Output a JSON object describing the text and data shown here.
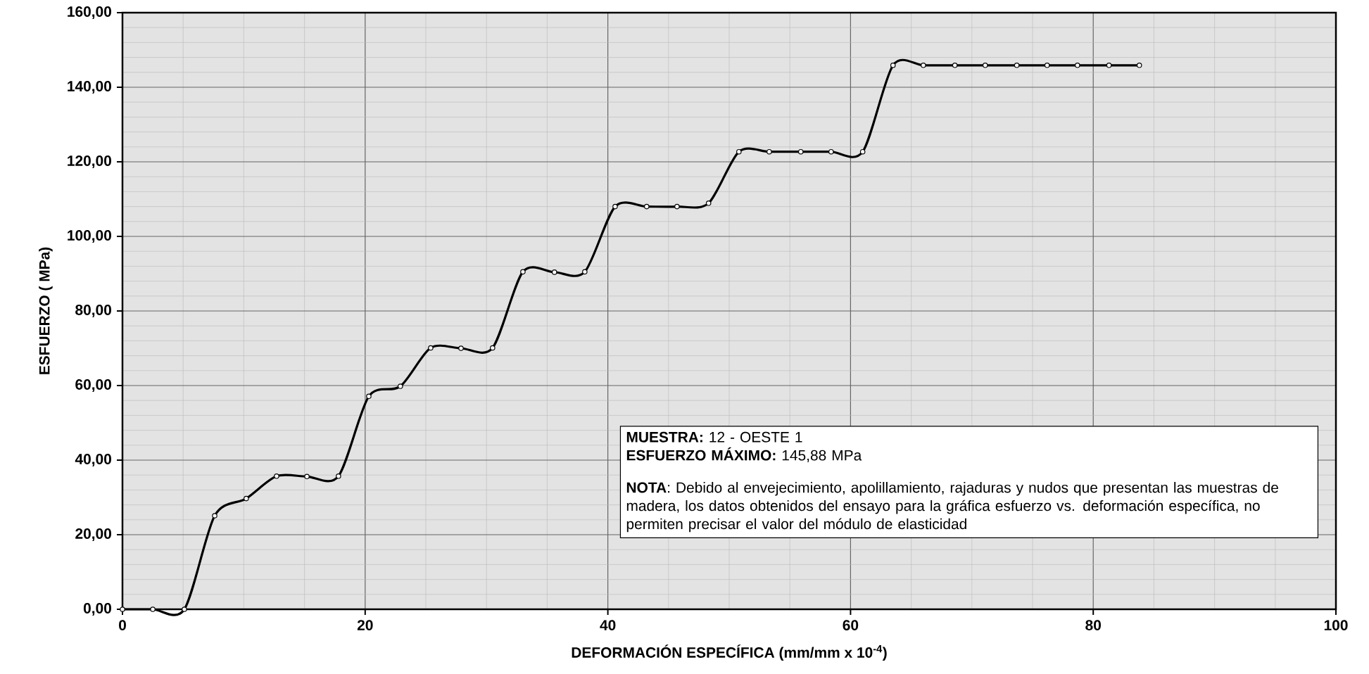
{
  "chart_data": {
    "type": "line",
    "xlabel": "DEFORMACIÓN ESPECÍFICA (mm/mm x 10$^{-4}$)",
    "ylabel": "ESFUERZO ( MPa)",
    "annotations": [
      "**MUESTRA:** 12 - OESTE 1",
      "**ESFUERZO MÁXIMO:** 145,88 MPa",
      "**NOTA**: Debido al envejecimiento, apolillamiento, rajaduras y nudos que presentan las muestras de madera, los datos obtenidos del ensayo para la gráfica esfuerzo vs. deformación específica, no permiten precisar el valor del módulo de elasticidad"
    ],
    "x": [
      0,
      2.5,
      5.1,
      7.6,
      10.2,
      12.7,
      15.2,
      17.8,
      20.3,
      22.9,
      25.4,
      27.9,
      30.5,
      33.0,
      35.6,
      38.1,
      40.6,
      43.2,
      45.7,
      48.3,
      50.8,
      53.3,
      55.9,
      58.4,
      61.0,
      63.5,
      66.0,
      68.6,
      71.1,
      73.7,
      76.2,
      78.7,
      81.3,
      83.8
    ],
    "series": [
      {
        "color": "#000000",
        "values": [
          0,
          0,
          0,
          25.1,
          29.7,
          35.7,
          35.6,
          35.7,
          57.1,
          59.8,
          70.1,
          70.0,
          70.1,
          90.5,
          90.4,
          90.5,
          108.0,
          108.0,
          108.0,
          108.9,
          122.7,
          122.7,
          122.7,
          122.7,
          122.7,
          145.88,
          145.88,
          145.88,
          145.88,
          145.88,
          145.88,
          145.88,
          145.88,
          145.88
        ]
      }
    ],
    "xlim": [
      0,
      100
    ],
    "xticks": [
      0,
      20,
      40,
      60,
      80,
      100
    ],
    "ylim": [
      0,
      160
    ],
    "yticks": [
      {
        "value": 0,
        "label": "0,00"
      },
      {
        "value": 20,
        "label": "20,00"
      },
      {
        "value": 40,
        "label": "40,00"
      },
      {
        "value": 60,
        "label": "60,00"
      },
      {
        "value": 80,
        "label": "80,00"
      },
      {
        "value": 100,
        "label": "100,00"
      },
      {
        "value": 120,
        "label": "120,00"
      },
      {
        "value": 140,
        "label": "140,00"
      },
      {
        "value": 160,
        "label": "160,00"
      }
    ],
    "grid": true,
    "marker": "circle",
    "line_style": "solid"
  }
}
